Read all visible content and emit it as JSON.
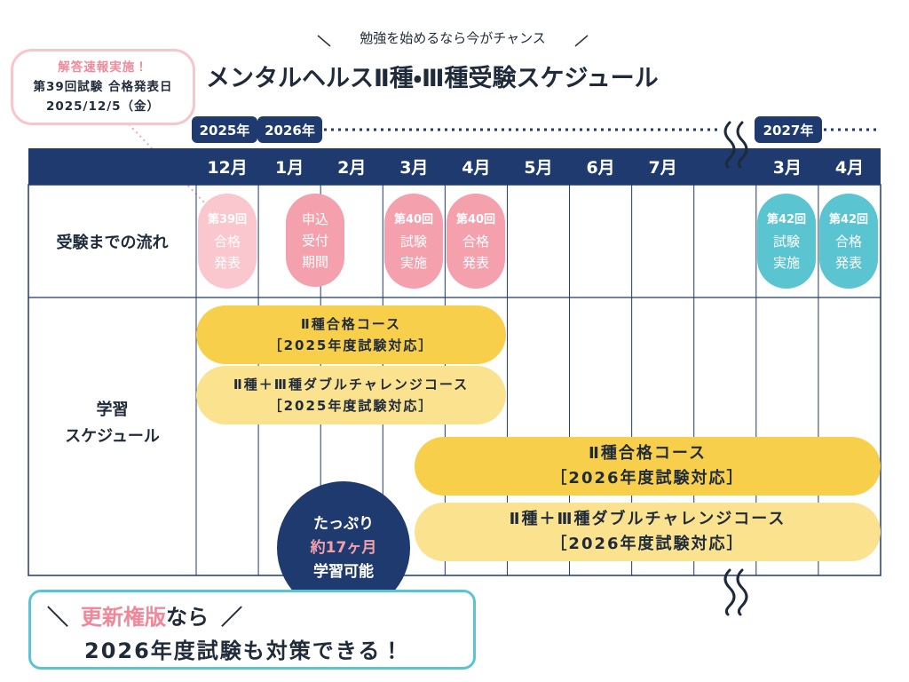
{
  "header": {
    "subtitle": "勉強を始めるなら今がチャンス",
    "title": "メンタルヘルスⅡ種・Ⅲ種受験スケジュール"
  },
  "callout": {
    "lines": [
      "解答速報実施！",
      "第39回試験 合格発表日",
      "2025/12/5（金）"
    ]
  },
  "timeline": {
    "years": [
      "2025年",
      "2026年",
      "2027年"
    ],
    "months": [
      "12月",
      "1月",
      "2月",
      "3月",
      "4月",
      "5月",
      "6月",
      "7月",
      null,
      "3月",
      "4月"
    ]
  },
  "rows": {
    "flow": "受験までの流れ",
    "study": [
      "学習",
      "スケジュール"
    ]
  },
  "events": [
    {
      "lines": [
        "第39回",
        "合格",
        "発表"
      ]
    },
    {
      "lines": [
        "申込",
        "受付",
        "期間"
      ]
    },
    {
      "lines": [
        "第40回",
        "試験",
        "実施"
      ]
    },
    {
      "lines": [
        "第40回",
        "合格",
        "発表"
      ]
    },
    {
      "lines": [
        "第42回",
        "試験",
        "実施"
      ]
    },
    {
      "lines": [
        "第42回",
        "合格",
        "発表"
      ]
    }
  ],
  "courses": [
    {
      "lines": [
        "Ⅱ種合格コース",
        "［2025年度試験対応］"
      ]
    },
    {
      "lines": [
        "Ⅱ種＋Ⅲ種ダブルチャレンジコース",
        "［2025年度試験対応］"
      ]
    },
    {
      "lines": [
        "Ⅱ種合格コース",
        "［2026年度試験対応］"
      ]
    },
    {
      "lines": [
        "Ⅱ種＋Ⅲ種ダブルチャレンジコース",
        "［2026年度試験対応］"
      ]
    }
  ],
  "badge": {
    "lines": [
      "たっぷり",
      "約17ヶ月",
      "学習可能"
    ]
  },
  "banner": {
    "open": "＼",
    "highlight": "更新権版",
    "rest": "なら",
    "close": "／",
    "line2": "2026年度試験も対策できる！"
  }
}
